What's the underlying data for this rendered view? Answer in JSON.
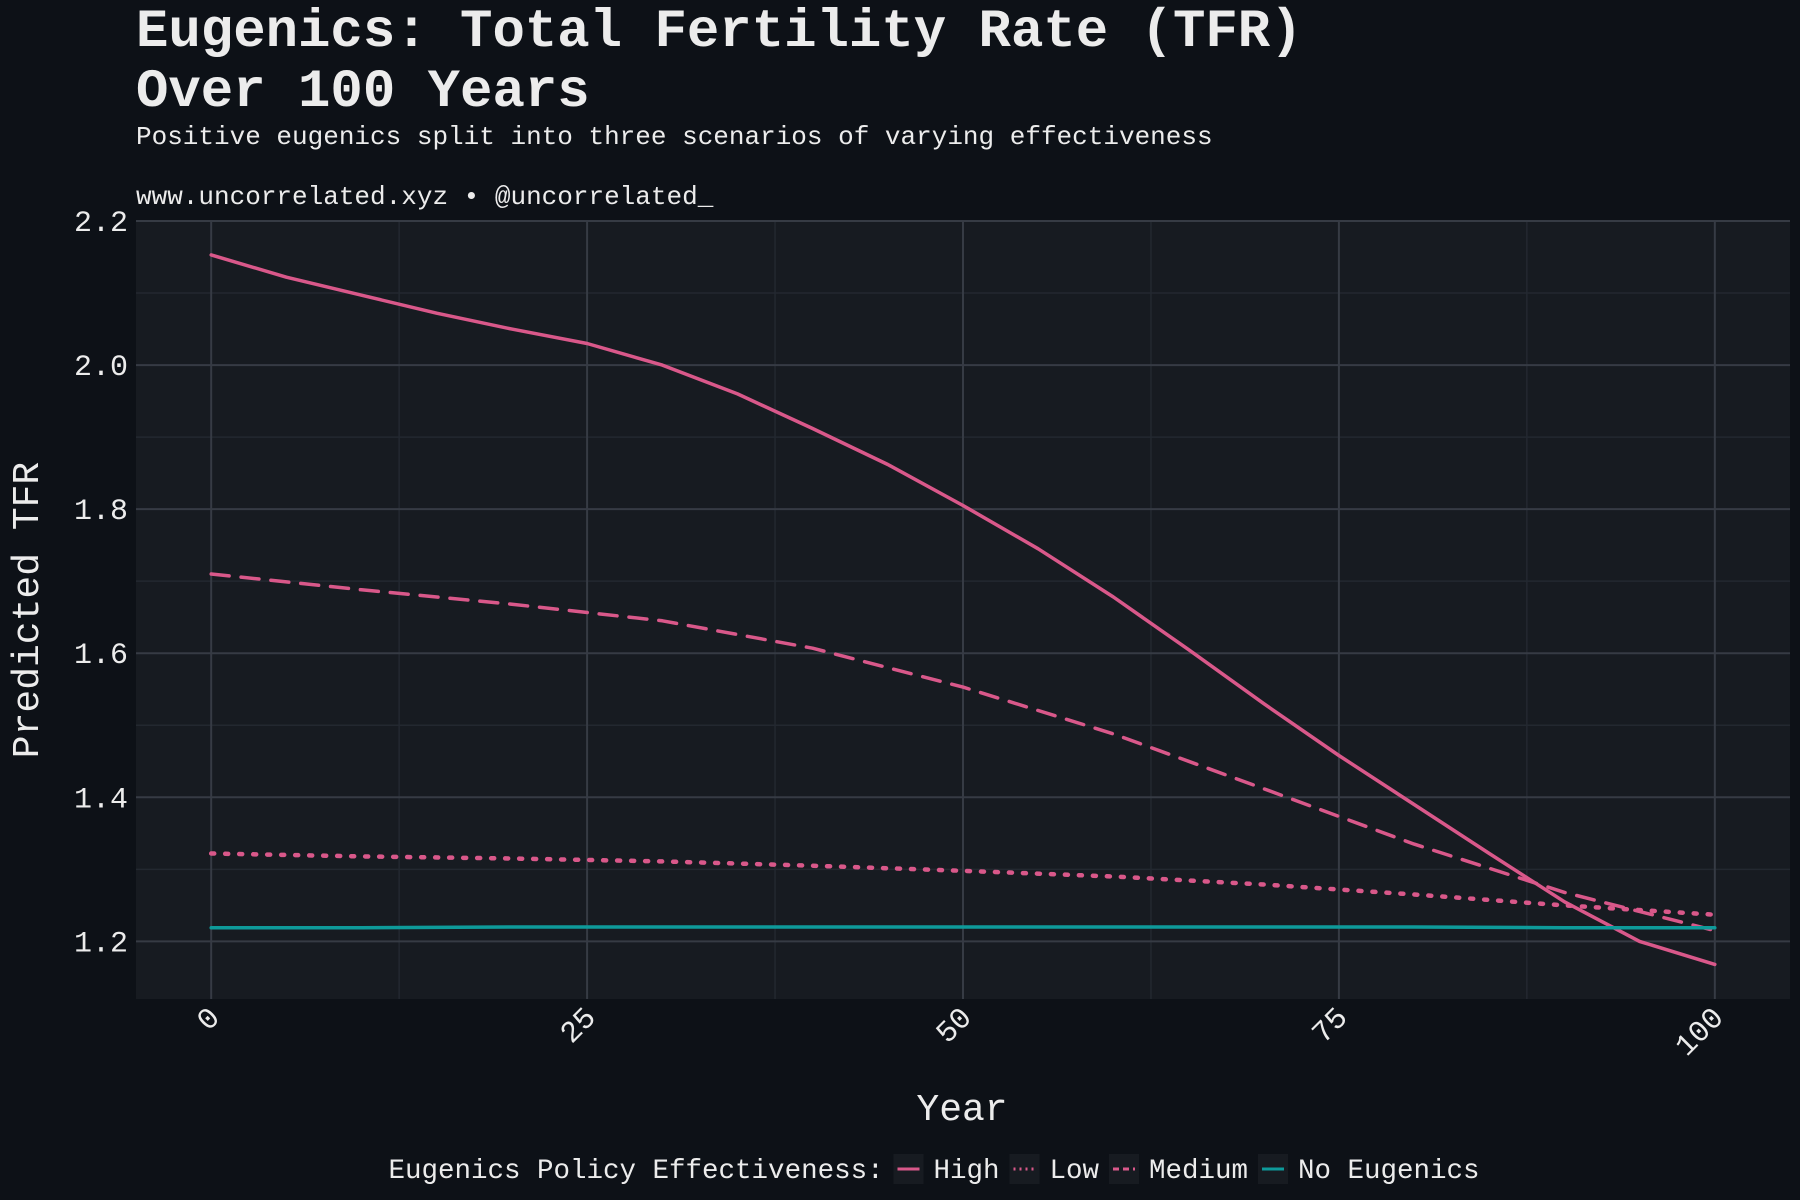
{
  "chart_data": {
    "type": "line",
    "title_lines": [
      "Eugenics: Total Fertility Rate (TFR)",
      "Over 100 Years"
    ],
    "subtitle": "Positive eugenics split into three scenarios of varying effectiveness",
    "caption": "www.uncorrelated.xyz • @uncorrelated_",
    "xlabel": "Year",
    "ylabel": "Predicted TFR",
    "xlim": [
      -5,
      105
    ],
    "ylim": [
      1.12,
      2.2
    ],
    "xticks": [
      0,
      25,
      50,
      75,
      100
    ],
    "xtick_labels": [
      "0",
      "25",
      "50",
      "75",
      "100"
    ],
    "yticks": [
      1.2,
      1.4,
      1.6,
      1.8,
      2.0,
      2.2
    ],
    "ytick_labels": [
      "1.2",
      "1.4",
      "1.6",
      "1.8",
      "2.0",
      "2.2"
    ],
    "legend_title": "Eugenics Policy Effectiveness:",
    "legend_position": "bottom",
    "series": [
      {
        "name": "High",
        "color": "#d9588a",
        "style": "solid",
        "x": [
          0,
          5,
          10,
          15,
          20,
          25,
          30,
          35,
          40,
          45,
          50,
          55,
          60,
          65,
          70,
          75,
          80,
          85,
          90,
          95,
          100
        ],
        "values": [
          2.153,
          2.122,
          2.097,
          2.072,
          2.05,
          2.03,
          2.0,
          1.96,
          1.912,
          1.862,
          1.805,
          1.745,
          1.678,
          1.605,
          1.53,
          1.458,
          1.39,
          1.322,
          1.255,
          1.2,
          1.168
        ]
      },
      {
        "name": "Low",
        "color": "#d9588a",
        "style": "dotted",
        "x": [
          0,
          10,
          20,
          30,
          40,
          50,
          60,
          70,
          80,
          90,
          100
        ],
        "values": [
          1.322,
          1.318,
          1.315,
          1.311,
          1.305,
          1.298,
          1.29,
          1.279,
          1.265,
          1.25,
          1.237
        ]
      },
      {
        "name": "Medium",
        "color": "#d9588a",
        "style": "dashed",
        "x": [
          0,
          10,
          20,
          30,
          40,
          50,
          60,
          70,
          80,
          90,
          100
        ],
        "values": [
          1.71,
          1.688,
          1.668,
          1.645,
          1.607,
          1.553,
          1.488,
          1.412,
          1.335,
          1.268,
          1.215
        ]
      },
      {
        "name": "No Eugenics",
        "color": "#0e9a9a",
        "style": "solid",
        "x": [
          0,
          10,
          20,
          30,
          40,
          50,
          60,
          70,
          80,
          90,
          100
        ],
        "values": [
          1.219,
          1.219,
          1.22,
          1.22,
          1.22,
          1.22,
          1.22,
          1.22,
          1.22,
          1.219,
          1.219
        ]
      }
    ]
  },
  "colors": {
    "background": "#0d1117",
    "panel": "#171b21",
    "grid_major": "#363b44",
    "grid_minor": "#232830",
    "text": "#ececec"
  }
}
